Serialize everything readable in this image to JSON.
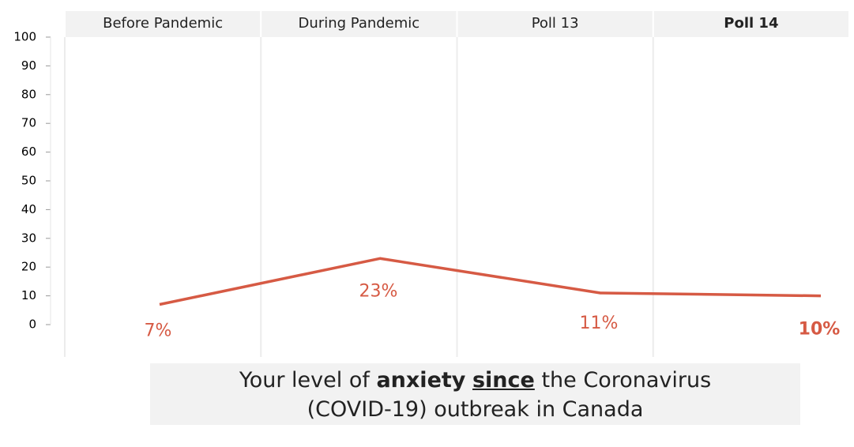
{
  "chart_data": {
    "type": "line",
    "categories": [
      "Before Pandemic",
      "During Pandemic",
      "Poll 13",
      "Poll 14"
    ],
    "series": [
      {
        "name": "Anxiety",
        "color": "#d65a44",
        "values": [
          7,
          23,
          11,
          10
        ],
        "value_labels": [
          "7%",
          "23%",
          "11%",
          "10%"
        ]
      }
    ],
    "ylim": [
      0,
      100
    ],
    "yticks": [
      0,
      10,
      20,
      30,
      40,
      50,
      60,
      70,
      80,
      90,
      100
    ],
    "caption": [
      "Your level of",
      "anxiety",
      "since",
      "the Coronavirus",
      "(COVID-19) outbreak in Canada"
    ]
  }
}
